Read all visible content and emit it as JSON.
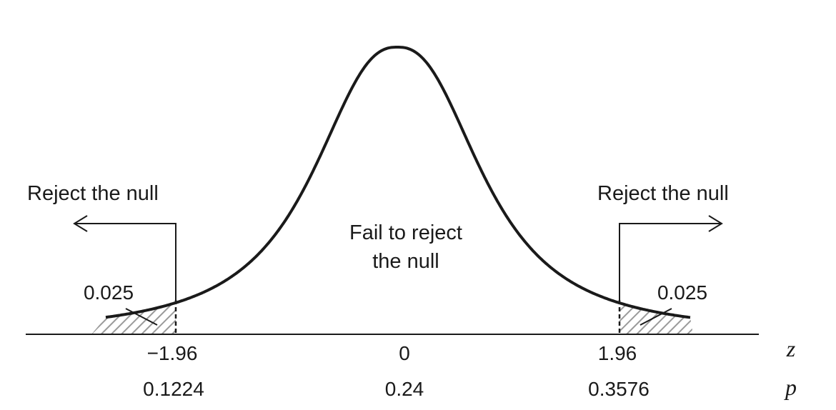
{
  "diagram": {
    "type": "normal-distribution-hypothesis-test",
    "regions": {
      "left_reject_label": "Reject the null",
      "right_reject_label": "Reject the null",
      "fail_to_reject_line1": "Fail to reject",
      "fail_to_reject_line2": "the null"
    },
    "tail_areas": {
      "left": "0.025",
      "right": "0.025"
    },
    "axis_rows": {
      "z": {
        "var_label": "z",
        "ticks": [
          "−1.96",
          "0",
          "1.96"
        ]
      },
      "p": {
        "var_label": "p",
        "ticks": [
          "0.1224",
          "0.24",
          "0.3576"
        ]
      }
    },
    "critical_z": 1.96,
    "hatch_color": "#9a9a9a",
    "line_color": "#1a1a1a"
  }
}
